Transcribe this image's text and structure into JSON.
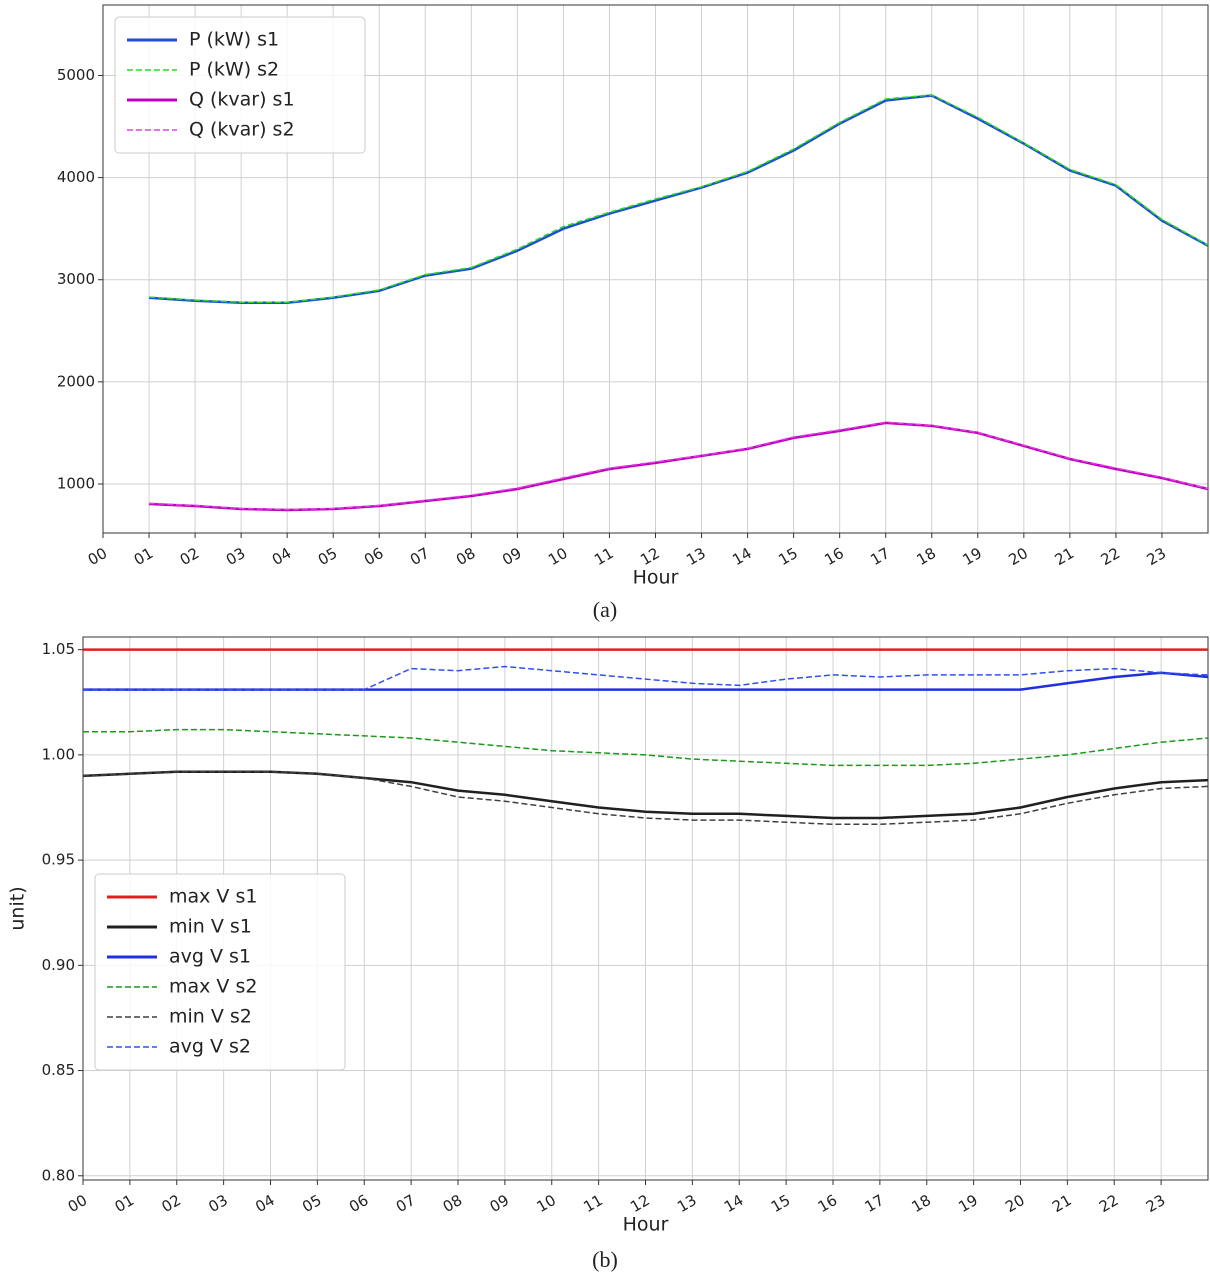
{
  "chart_data": [
    {
      "type": "line",
      "caption": "(a)",
      "x_label": "Hour",
      "xlim": [
        0,
        24
      ],
      "xticks": [
        {
          "value": 0,
          "label": "00"
        },
        {
          "value": 1,
          "label": "01"
        },
        {
          "value": 2,
          "label": "02"
        },
        {
          "value": 3,
          "label": "03"
        },
        {
          "value": 4,
          "label": "04"
        },
        {
          "value": 5,
          "label": "05"
        },
        {
          "value": 6,
          "label": "06"
        },
        {
          "value": 7,
          "label": "07"
        },
        {
          "value": 8,
          "label": "08"
        },
        {
          "value": 9,
          "label": "09"
        },
        {
          "value": 10,
          "label": "10"
        },
        {
          "value": 11,
          "label": "11"
        },
        {
          "value": 12,
          "label": "12"
        },
        {
          "value": 13,
          "label": "13"
        },
        {
          "value": 14,
          "label": "14"
        },
        {
          "value": 15,
          "label": "15"
        },
        {
          "value": 16,
          "label": "16"
        },
        {
          "value": 17,
          "label": "17"
        },
        {
          "value": 18,
          "label": "18"
        },
        {
          "value": 19,
          "label": "19"
        },
        {
          "value": 20,
          "label": "20"
        },
        {
          "value": 21,
          "label": "21"
        },
        {
          "value": 22,
          "label": "22"
        },
        {
          "value": 23,
          "label": "23"
        }
      ],
      "ylim": [
        520,
        5690
      ],
      "yticks": [
        1000,
        2000,
        3000,
        4000,
        5000
      ],
      "grid": true,
      "legend": "upper left",
      "x": [
        1,
        2,
        3,
        4,
        5,
        6,
        7,
        8,
        9,
        10,
        11,
        12,
        13,
        14,
        15,
        16,
        17,
        18,
        19,
        20,
        21,
        22,
        23,
        24
      ],
      "series": [
        {
          "name": "P (kW) s1",
          "color": "#1f4fd0",
          "linestyle": "solid",
          "values": [
            2824,
            2794,
            2775,
            2775,
            2824,
            2892,
            3040,
            3108,
            3284,
            3500,
            3647,
            3775,
            3902,
            4049,
            4265,
            4529,
            4755,
            4804,
            4578,
            4333,
            4069,
            3922,
            3578,
            3333
          ]
        },
        {
          "name": "P (kW) s2",
          "color": "#22dd22",
          "linestyle": "dashed",
          "values": [
            2830,
            2800,
            2780,
            2780,
            2830,
            2900,
            3050,
            3120,
            3300,
            3520,
            3660,
            3790,
            3910,
            4060,
            4280,
            4540,
            4770,
            4810,
            4590,
            4340,
            4080,
            3930,
            3590,
            3340
          ]
        },
        {
          "name": "Q (kvar) s1",
          "color": "#c000c0",
          "linestyle": "solid",
          "values": [
            804,
            784,
            755,
            745,
            755,
            784,
            833,
            882,
            951,
            1049,
            1147,
            1206,
            1275,
            1343,
            1451,
            1520,
            1598,
            1569,
            1500,
            1373,
            1245,
            1147,
            1059,
            951
          ]
        },
        {
          "name": "Q (kvar) s2",
          "color": "#e040e0",
          "linestyle": "dashed",
          "values": [
            810,
            790,
            760,
            750,
            760,
            790,
            840,
            890,
            960,
            1060,
            1155,
            1215,
            1280,
            1350,
            1460,
            1530,
            1605,
            1575,
            1505,
            1380,
            1250,
            1155,
            1065,
            955
          ]
        }
      ]
    },
    {
      "type": "line",
      "caption": "(b)",
      "x_label": "Hour",
      "y_label": "unit)",
      "xlim": [
        0,
        24
      ],
      "xticks": [
        {
          "value": 0,
          "label": "00"
        },
        {
          "value": 1,
          "label": "01"
        },
        {
          "value": 2,
          "label": "02"
        },
        {
          "value": 3,
          "label": "03"
        },
        {
          "value": 4,
          "label": "04"
        },
        {
          "value": 5,
          "label": "05"
        },
        {
          "value": 6,
          "label": "06"
        },
        {
          "value": 7,
          "label": "07"
        },
        {
          "value": 8,
          "label": "08"
        },
        {
          "value": 9,
          "label": "09"
        },
        {
          "value": 10,
          "label": "10"
        },
        {
          "value": 11,
          "label": "11"
        },
        {
          "value": 12,
          "label": "12"
        },
        {
          "value": 13,
          "label": "13"
        },
        {
          "value": 14,
          "label": "14"
        },
        {
          "value": 15,
          "label": "15"
        },
        {
          "value": 16,
          "label": "16"
        },
        {
          "value": 17,
          "label": "17"
        },
        {
          "value": 18,
          "label": "18"
        },
        {
          "value": 19,
          "label": "19"
        },
        {
          "value": 20,
          "label": "20"
        },
        {
          "value": 21,
          "label": "21"
        },
        {
          "value": 22,
          "label": "22"
        },
        {
          "value": 23,
          "label": "23"
        }
      ],
      "ylim": [
        0.798,
        1.056
      ],
      "yticks": [
        {
          "value": 0.8,
          "label": "0.80"
        },
        0.85,
        {
          "value": 0.9,
          "label": "0.90"
        },
        0.95,
        {
          "value": 1.0,
          "label": "1.00"
        },
        1.05
      ],
      "grid": true,
      "legend": "lower left",
      "x": [
        0,
        1,
        2,
        3,
        4,
        5,
        6,
        7,
        8,
        9,
        10,
        11,
        12,
        13,
        14,
        15,
        16,
        17,
        18,
        19,
        20,
        21,
        22,
        23,
        24
      ],
      "series": [
        {
          "name": "max V s1",
          "color": "#e02020",
          "linestyle": "solid",
          "values": [
            1.05,
            1.05,
            1.05,
            1.05,
            1.05,
            1.05,
            1.05,
            1.05,
            1.05,
            1.05,
            1.05,
            1.05,
            1.05,
            1.05,
            1.05,
            1.05,
            1.05,
            1.05,
            1.05,
            1.05,
            1.05,
            1.05,
            1.05,
            1.05,
            1.05
          ]
        },
        {
          "name": "min V s1",
          "color": "#202020",
          "linestyle": "solid",
          "values": [
            0.99,
            0.991,
            0.992,
            0.992,
            0.992,
            0.991,
            0.989,
            0.987,
            0.983,
            0.981,
            0.978,
            0.975,
            0.973,
            0.972,
            0.972,
            0.971,
            0.97,
            0.97,
            0.971,
            0.972,
            0.975,
            0.98,
            0.984,
            0.987,
            0.988
          ]
        },
        {
          "name": "avg V s1",
          "color": "#2030e0",
          "linestyle": "solid",
          "values": [
            1.031,
            1.031,
            1.031,
            1.031,
            1.031,
            1.031,
            1.031,
            1.031,
            1.031,
            1.031,
            1.031,
            1.031,
            1.031,
            1.031,
            1.031,
            1.031,
            1.031,
            1.031,
            1.031,
            1.031,
            1.031,
            1.034,
            1.037,
            1.039,
            1.037
          ]
        },
        {
          "name": "max V s2",
          "color": "#1a9a1a",
          "linestyle": "dashed",
          "values": [
            1.011,
            1.011,
            1.012,
            1.012,
            1.011,
            1.01,
            1.009,
            1.008,
            1.006,
            1.004,
            1.002,
            1.001,
            1.0,
            0.998,
            0.997,
            0.996,
            0.995,
            0.995,
            0.995,
            0.996,
            0.998,
            1.0,
            1.003,
            1.006,
            1.008
          ]
        },
        {
          "name": "min V s2",
          "color": "#404040",
          "linestyle": "dashed",
          "values": [
            0.99,
            0.991,
            0.992,
            0.992,
            0.992,
            0.991,
            0.989,
            0.985,
            0.98,
            0.978,
            0.975,
            0.972,
            0.97,
            0.969,
            0.969,
            0.968,
            0.967,
            0.967,
            0.968,
            0.969,
            0.972,
            0.977,
            0.981,
            0.984,
            0.985
          ]
        },
        {
          "name": "avg V s2",
          "color": "#3050f0",
          "linestyle": "dashed",
          "values": [
            1.031,
            1.031,
            1.031,
            1.031,
            1.031,
            1.031,
            1.031,
            1.041,
            1.04,
            1.042,
            1.04,
            1.038,
            1.036,
            1.034,
            1.033,
            1.036,
            1.038,
            1.037,
            1.038,
            1.038,
            1.038,
            1.04,
            1.041,
            1.039,
            1.038
          ]
        }
      ]
    }
  ]
}
